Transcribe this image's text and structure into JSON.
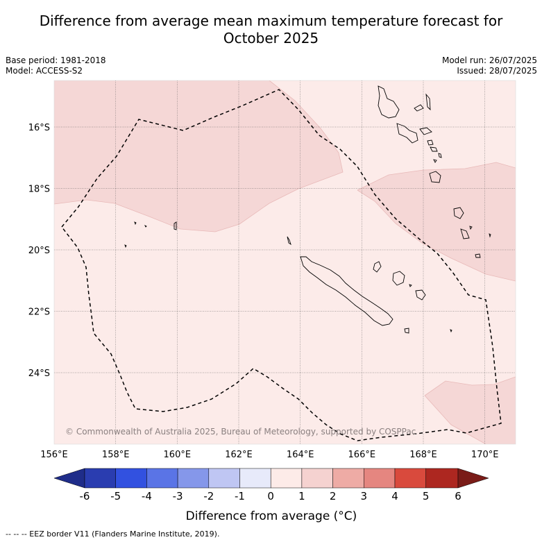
{
  "title_line1": "Difference from average mean maximum temperature forecast for",
  "title_line2": "October 2025",
  "base_period": "Base period: 1981-2018",
  "model": "Model: ACCESS-S2",
  "model_run": "Model run: 26/07/2025",
  "issued": "Issued: 28/07/2025",
  "copyright": "© Commonwealth of Australia 2025, Bureau of Meteorology, supported by COSPPac",
  "lat_labels": [
    "16°S",
    "18°S",
    "20°S",
    "22°S",
    "24°S"
  ],
  "lon_labels": [
    "156°E",
    "158°E",
    "160°E",
    "162°E",
    "164°E",
    "166°E",
    "168°E",
    "170°E"
  ],
  "colorbar": {
    "label": "Difference from average (°C)",
    "ticks": [
      "-6",
      "-5",
      "-4",
      "-3",
      "-2",
      "-1",
      "0",
      "1",
      "2",
      "3",
      "4",
      "5",
      "6"
    ],
    "colors": [
      "#1f2d8a",
      "#2a3db0",
      "#3251e0",
      "#5a74e6",
      "#8597ea",
      "#bfc6f3",
      "#e7eafa",
      "#fdebe8",
      "#f5d2d0",
      "#eeaba5",
      "#e58680",
      "#d94a3d",
      "#ad2720",
      "#7a1c18"
    ]
  },
  "map_colors": {
    "anomaly_0_1": "#fcebe9",
    "anomaly_1_2": "#f5d7d6"
  },
  "footnote": "--  --  -- EEZ border V11 (Flanders Marine Institute, 2019)."
}
